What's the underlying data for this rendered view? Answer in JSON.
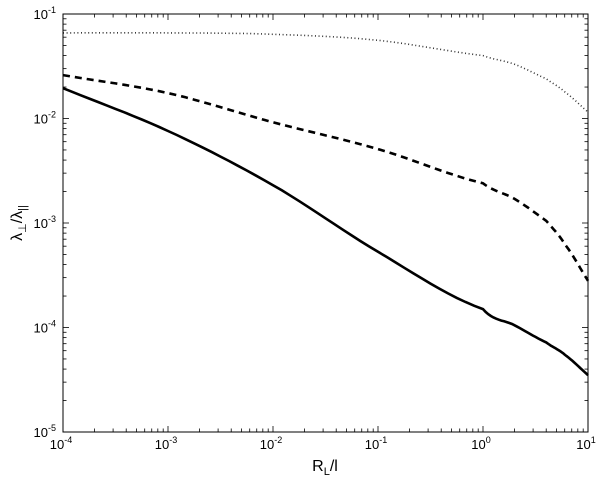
{
  "chart_data": {
    "type": "line",
    "title": "",
    "xlabel": "R_L/l",
    "xlabel_main": "R",
    "xlabel_sub": "L",
    "xlabel_tail": "/l",
    "ylabel": "λ⊥/λ||",
    "ylabel_main1": "λ",
    "ylabel_sub1": "⊥",
    "ylabel_slash": "/",
    "ylabel_main2": "λ",
    "ylabel_sub2": "||",
    "xscale": "log",
    "yscale": "log",
    "xlim": [
      0.0001,
      10
    ],
    "ylim": [
      1e-05,
      0.1
    ],
    "grid": false,
    "legend": null,
    "x_ticks": [
      {
        "base": "10",
        "exp": "-4",
        "value": 0.0001
      },
      {
        "base": "10",
        "exp": "-3",
        "value": 0.001
      },
      {
        "base": "10",
        "exp": "-2",
        "value": 0.01
      },
      {
        "base": "10",
        "exp": "-1",
        "value": 0.1
      },
      {
        "base": "10",
        "exp": "0",
        "value": 1
      },
      {
        "base": "10",
        "exp": "1",
        "value": 10
      }
    ],
    "y_ticks": [
      {
        "base": "10",
        "exp": "-5",
        "value": 1e-05
      },
      {
        "base": "10",
        "exp": "-4",
        "value": 0.0001
      },
      {
        "base": "10",
        "exp": "-3",
        "value": 0.001
      },
      {
        "base": "10",
        "exp": "-2",
        "value": 0.01
      },
      {
        "base": "10",
        "exp": "-1",
        "value": 0.1
      }
    ],
    "x": [
      0.0001,
      0.001,
      0.01,
      0.1,
      1,
      2,
      4,
      6,
      10
    ],
    "series": [
      {
        "name": "dotted",
        "style": "dotted",
        "color": "#000000",
        "values": [
          0.066,
          0.066,
          0.064,
          0.056,
          0.04,
          0.033,
          0.024,
          0.018,
          0.0115
        ]
      },
      {
        "name": "dashed",
        "style": "dashed",
        "color": "#000000",
        "values": [
          0.026,
          0.0175,
          0.0092,
          0.0051,
          0.0024,
          0.0017,
          0.00105,
          0.00063,
          0.00028
        ]
      },
      {
        "name": "solid",
        "style": "solid",
        "color": "#000000",
        "values": [
          0.0195,
          0.0076,
          0.0023,
          0.00053,
          0.00015,
          0.000105,
          7.2e-05,
          5.5e-05,
          3.5e-05
        ]
      }
    ]
  }
}
